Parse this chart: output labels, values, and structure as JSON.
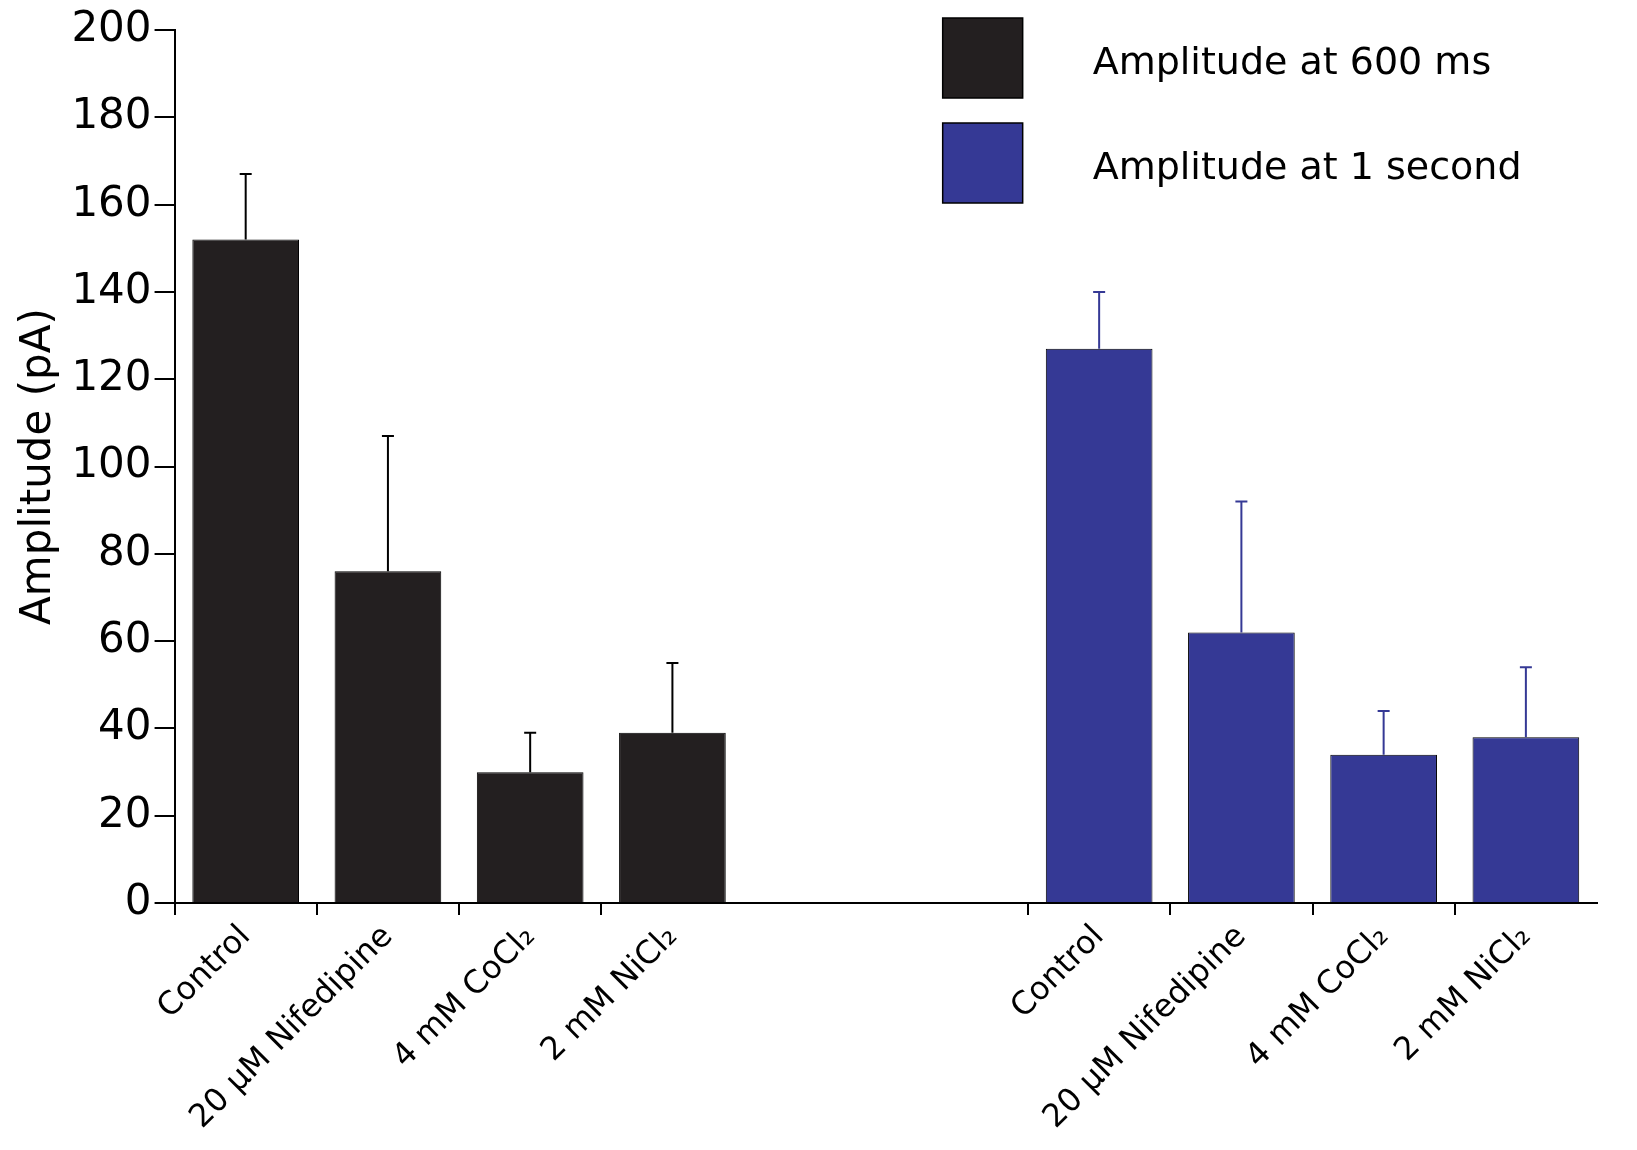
{
  "chart_data": {
    "type": "bar",
    "ylabel": "Amplitude (pA)",
    "categories": [
      "Control",
      "20 μM Nifedipine",
      "4 mM CoCl₂",
      "2 mM NiCl₂",
      null,
      null,
      "Control",
      "20 μM Nifedipine",
      "4 mM CoCl₂",
      "2 mM NiCl₂"
    ],
    "series": [
      {
        "name": "Amplitude at 600 ms",
        "color": "#231f20",
        "values": [
          152,
          76,
          30,
          39,
          null,
          null,
          null,
          null,
          null,
          null
        ],
        "errors": [
          [
            152,
            167
          ],
          [
            76,
            107
          ],
          [
            30,
            39
          ],
          [
            39,
            55
          ],
          null,
          null,
          null,
          null,
          null,
          null
        ]
      },
      {
        "name": "Amplitude at 1 second",
        "color": "#353995",
        "values": [
          null,
          null,
          null,
          null,
          null,
          null,
          127,
          62,
          34,
          38
        ],
        "errors": [
          null,
          null,
          null,
          null,
          null,
          null,
          [
            127,
            140
          ],
          [
            62,
            92
          ],
          [
            34,
            44
          ],
          [
            38,
            54
          ]
        ]
      }
    ],
    "ylim": [
      0,
      200
    ],
    "yticks": [
      0,
      20,
      40,
      60,
      80,
      100,
      120,
      140,
      160,
      180,
      200
    ],
    "grid": false,
    "legend": "top right"
  }
}
